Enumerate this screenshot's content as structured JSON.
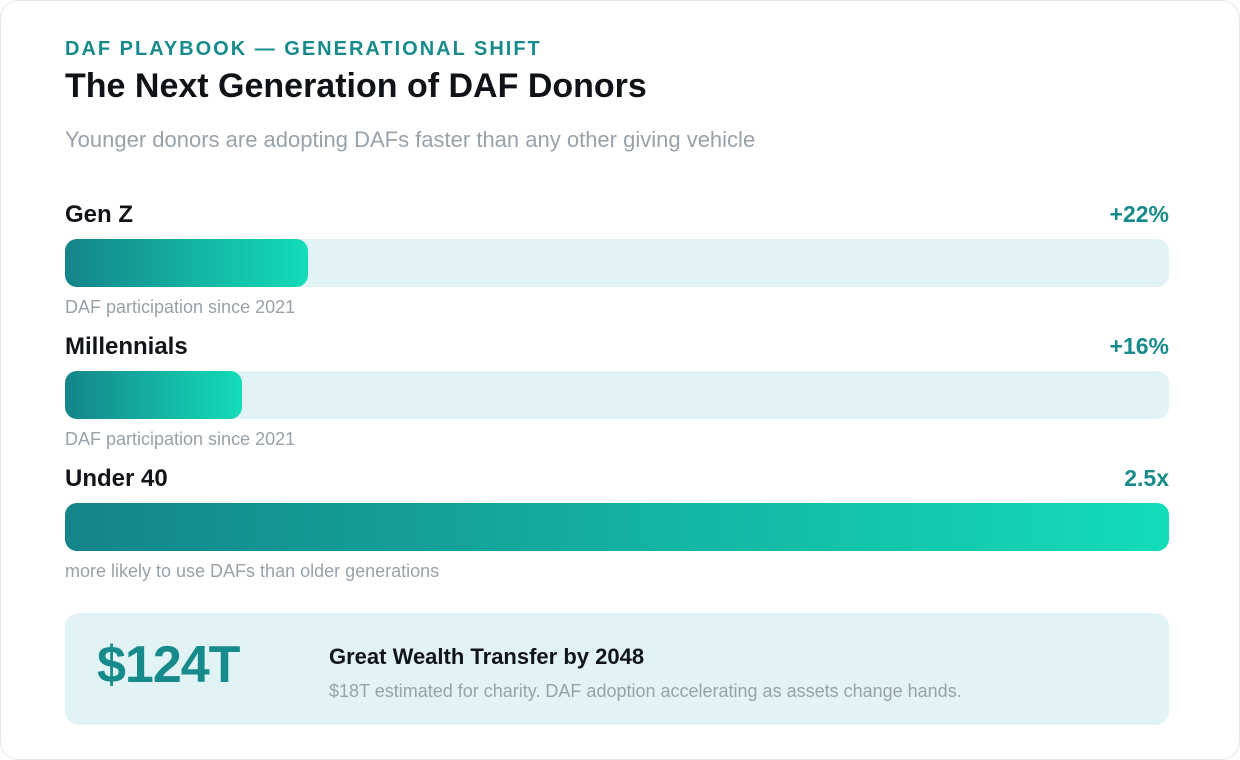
{
  "header": {
    "eyebrow": "DAF PLAYBOOK — GENERATIONAL SHIFT",
    "title": "The Next Generation of DAF Donors",
    "subtitle": "Younger donors are adopting DAFs faster than any other giving vehicle"
  },
  "chart_data": {
    "type": "bar",
    "orientation": "horizontal",
    "title": "The Next Generation of DAF Donors",
    "subtitle": "Younger donors are adopting DAFs faster than any other giving vehicle",
    "categories": [
      "Gen Z",
      "Millennials",
      "Under 40"
    ],
    "series": [
      {
        "values": [
          22,
          16,
          2.5
        ],
        "labels": [
          "+22%",
          "+16%",
          "2.5x"
        ],
        "notes": [
          "DAF participation since 2021",
          "DAF participation since 2021",
          "more likely to use DAFs than older generations"
        ],
        "fill_fraction": [
          0.22,
          0.16,
          1.0
        ]
      }
    ],
    "gradient_colors": [
      "#148489",
      "#13dcb9"
    ],
    "track_color": "#e1f3f5",
    "accent_color": "#178b8b",
    "grid": false,
    "legend": "none"
  },
  "callout": {
    "number": "$124T",
    "title": "Great Wealth Transfer by 2048",
    "text": "$18T estimated for charity. DAF adoption accelerating as assets change hands."
  }
}
